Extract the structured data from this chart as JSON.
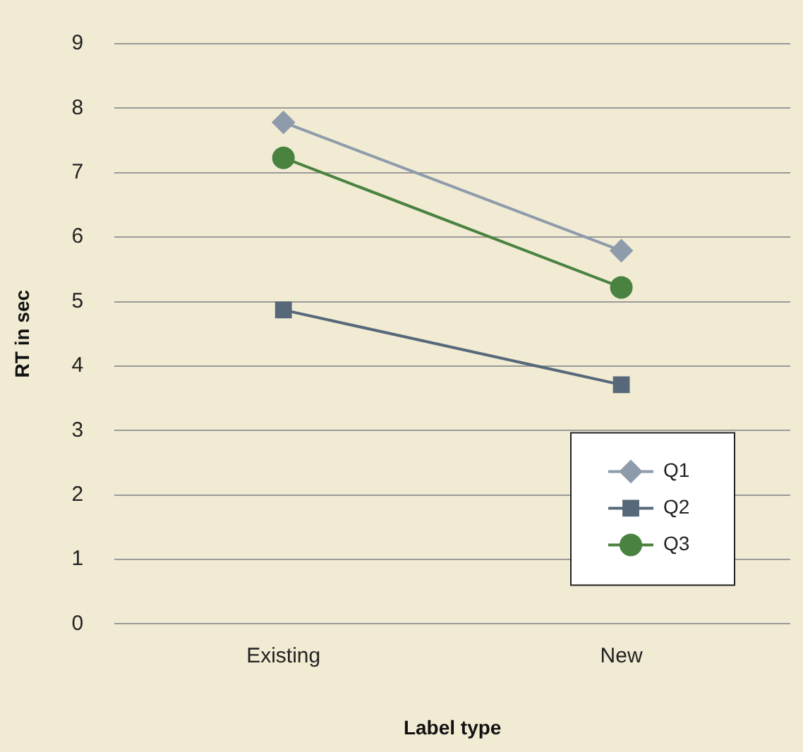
{
  "chart_data": {
    "type": "line",
    "xlabel": "Label type",
    "ylabel": "RT in sec",
    "categories": [
      "Existing",
      "New"
    ],
    "series": [
      {
        "name": "Q1",
        "color": "#8e9bab",
        "marker": "diamond",
        "values": [
          7.78,
          5.79
        ]
      },
      {
        "name": "Q2",
        "color": "#566879",
        "marker": "square",
        "values": [
          4.87,
          3.71
        ]
      },
      {
        "name": "Q3",
        "color": "#4a8240",
        "marker": "circle",
        "values": [
          7.23,
          5.22
        ]
      }
    ],
    "ylim": [
      0,
      9
    ],
    "yticks": [
      0,
      1,
      2,
      3,
      4,
      5,
      6,
      7,
      8,
      9
    ],
    "grid": "y",
    "legend": "bottom right"
  }
}
